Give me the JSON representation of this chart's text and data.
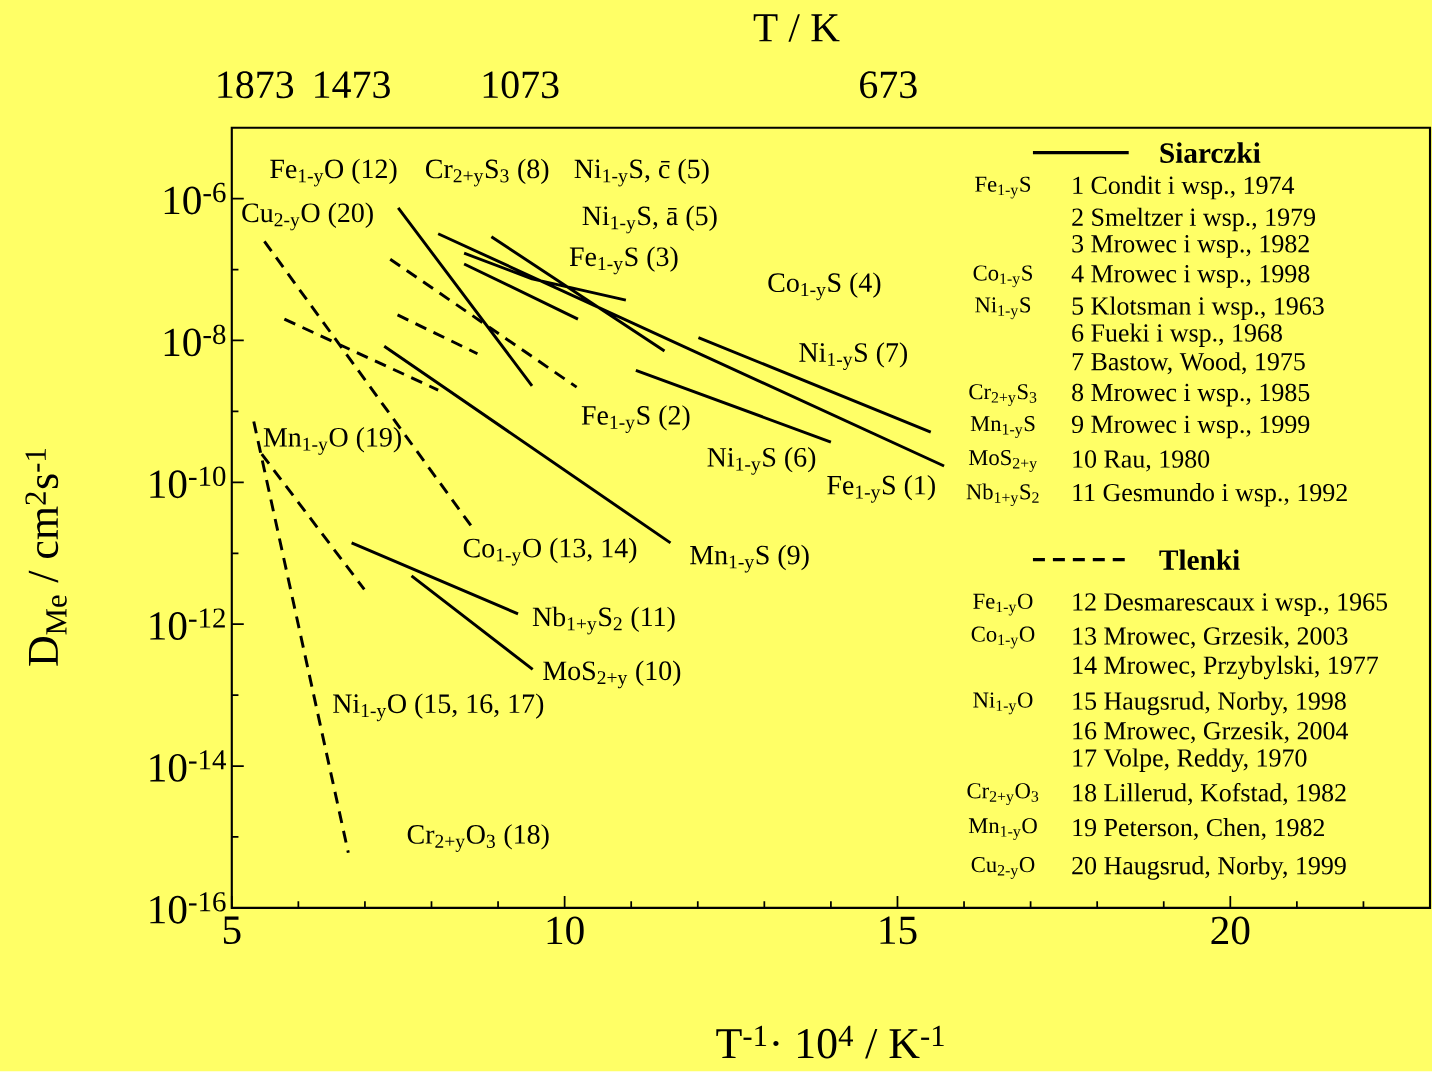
{
  "chart_data": {
    "type": "line",
    "xlabel": "T$^{-1}$· 10$^{4}$   / K$^{-1}$",
    "ylabel": "D$_{Me}$    / cm$^{2}$s$^{-1}$",
    "xlim": [
      5,
      23
    ],
    "ylim": [
      1e-16,
      1e-05
    ],
    "log": "y",
    "xticks": [
      5,
      {
        "value": 6,
        "label": null
      },
      {
        "value": 7,
        "label": null
      },
      {
        "value": 8,
        "label": null
      },
      {
        "value": 9,
        "label": null
      },
      10,
      {
        "value": 11,
        "label": null
      },
      {
        "value": 12,
        "label": null
      },
      {
        "value": 13,
        "label": null
      },
      {
        "value": 14,
        "label": null
      },
      15,
      {
        "value": 16,
        "label": null
      },
      {
        "value": 17,
        "label": null
      },
      {
        "value": 18,
        "label": null
      },
      {
        "value": 19,
        "label": null
      },
      20,
      {
        "value": 21,
        "label": null
      },
      {
        "value": 22,
        "label": null
      }
    ],
    "yticks": [
      {
        "value": 1e-16,
        "label": "10$^{-16}$"
      },
      {
        "value": 1e-15,
        "label": null
      },
      {
        "value": 1e-14,
        "label": "10$^{-14}$"
      },
      {
        "value": 1e-13,
        "label": null
      },
      {
        "value": 1e-12,
        "label": "10$^{-12}$"
      },
      {
        "value": 1e-11,
        "label": null
      },
      {
        "value": 1e-10,
        "label": "10$^{-10}$"
      },
      {
        "value": 1e-09,
        "label": null
      },
      {
        "value": 1e-08,
        "label": "10$^{-8}$"
      },
      {
        "value": 1e-07,
        "label": null
      },
      {
        "value": 1e-06,
        "label": "10$^{-6}$"
      }
    ],
    "legend": "top right",
    "series": [
      {
        "name": "Siarczki",
        "color": "#000000",
        "line_style": "solid",
        "x": [
          7.5,
          9.51,
          null,
          8.1,
          15.7,
          null,
          8.9,
          11.5,
          null,
          8.49,
          10.2,
          null,
          8.49,
          9.51,
          10.92,
          null,
          12.01,
          15.5,
          null,
          11.07,
          14.0,
          null,
          7.29,
          11.59,
          null,
          6.8,
          9.3,
          null,
          7.7,
          9.52
        ],
        "values": [
          7.4e-07,
          2.3e-09,
          null,
          3.2e-07,
          1.7e-10,
          null,
          2.9e-07,
          7.1e-09,
          null,
          1.2e-07,
          2e-08,
          null,
          1.7e-07,
          7.4e-08,
          3.7e-08,
          null,
          1.1e-08,
          5.1e-10,
          null,
          3.8e-09,
          3.7e-10,
          null,
          8.3e-09,
          1.4e-11,
          null,
          1.4e-11,
          1.4e-12,
          null,
          4.8e-12,
          2.3e-13
        ]
      },
      {
        "name": "Tlenki",
        "color": "#000000",
        "line_style": "dashed",
        "x": [
          7.38,
          10.18,
          null,
          5.49,
          8.6,
          null,
          7.49,
          8.69,
          null,
          5.79,
          8.1,
          null,
          5.45,
          6.99,
          null,
          5.33,
          6.75
        ],
        "values": [
          1.4e-07,
          2.2e-09,
          null,
          2.5e-07,
          2.4e-11,
          null,
          2.3e-08,
          6.5e-09,
          null,
          2e-08,
          2e-09,
          null,
          2.5e-10,
          3.1e-12,
          null,
          7.2e-10,
          6e-16
        ]
      }
    ],
    "annotations": [
      "Fe$_{1-y}$O (12)",
      "Cr$_{2+y}$S$_{3}$ (8)",
      "Ni$_{1-y}$S, c̄ (5)",
      "Cu$_{2-y}$O (20)",
      "Ni$_{1-y}$S, ā (5)",
      "Fe$_{1-y}$S (3)",
      "Co$_{1-y}$S (4)",
      "Ni$_{1-y}$S (7)",
      "Fe$_{1-y}$S (2)",
      "Mn$_{1-y}$O (19)",
      "Ni$_{1-y}$S (6)",
      "Fe$_{1-y}$S (1)",
      "Co$_{1-y}$O (13, 14)",
      "Mn$_{1-y}$S (9)",
      "Nb$_{1+y}$S$_{2}$ (11)",
      "MoS$_{2+y}$ (10)",
      "Ni$_{1-y}$O (15, 16, 17)",
      "Cr$_{2+y}$O$_{3}$ (18)",
      "Fe$_{1-y}$S",
      "1 Condit i wsp., 1974",
      "2 Smeltzer i wsp., 1979",
      "3 Mrowec i wsp., 1982",
      "Co$_{1-y}$S",
      "4 Mrowec i wsp., 1998",
      "Ni$_{1-y}$S",
      "5 Klotsman i wsp., 1963",
      "6 Fueki i wsp., 1968",
      "7 Bastow, Wood, 1975",
      "Cr$_{2+y}$S$_{3}$",
      "8 Mrowec i wsp., 1985",
      "Mn$_{1-y}$S",
      "9 Mrowec i wsp., 1999",
      "MoS$_{2+y}$",
      "10 Rau, 1980",
      "Nb$_{1+y}$S$_{2}$",
      "11 Gesmundo i wsp., 1992",
      "Fe$_{1-y}$O",
      "12 Desmarescaux i wsp., 1965",
      "Co$_{1-y}$O",
      "13 Mrowec, Grzesik, 2003",
      "14 Mrowec, Przybylski, 1977",
      "Ni$_{1-y}$O",
      "15 Haugsrud, Norby, 1998",
      "16 Mrowec, Grzesik, 2004",
      "17 Volpe, Reddy, 1970",
      "Cr$_{2+y}$O$_{3}$",
      "18 Lillerud, Kofstad, 1982",
      "Mn$_{1-y}$O",
      "19 Peterson, Chen, 1982",
      "Cu$_{2-y}$O",
      "20 Haugsrud, Norby, 1999",
      "T    / K",
      "1873",
      "1473",
      "1073",
      "673"
    ]
  }
}
